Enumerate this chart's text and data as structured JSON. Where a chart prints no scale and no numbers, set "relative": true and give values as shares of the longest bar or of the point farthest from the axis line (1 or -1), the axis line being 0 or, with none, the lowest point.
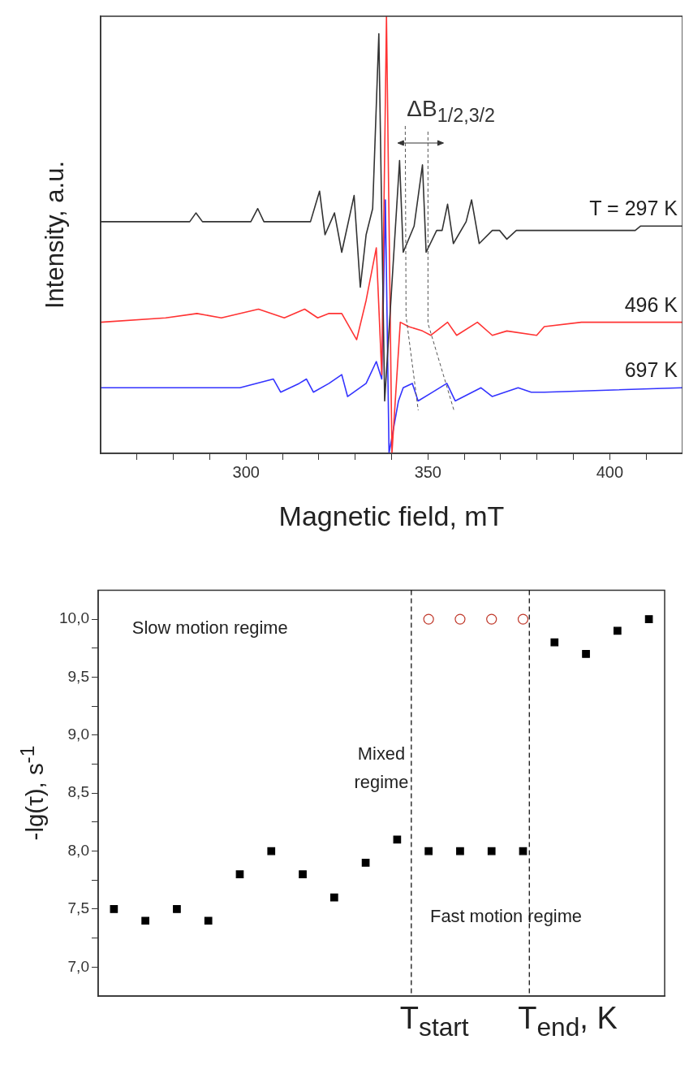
{
  "chart_data": [
    {
      "type": "line",
      "xlabel": "Magnetic field, mT",
      "ylabel": "Intensity, a.u.",
      "relative": true,
      "xlim": [
        260,
        420
      ],
      "xticks": [
        {
          "value": 270,
          "label": null
        },
        {
          "value": 280,
          "label": null
        },
        {
          "value": 290,
          "label": null
        },
        300,
        {
          "value": 310,
          "label": null
        },
        {
          "value": 320,
          "label": null
        },
        {
          "value": 330,
          "label": null
        },
        {
          "value": 340,
          "label": null
        },
        350,
        {
          "value": 360,
          "label": null
        },
        {
          "value": 370,
          "label": null
        },
        {
          "value": 380,
          "label": null
        },
        {
          "value": 390,
          "label": null
        },
        400,
        {
          "value": 410,
          "label": null
        }
      ],
      "annotations": [
        "ΔB$_{1/2,3/2}$"
      ],
      "grid": false,
      "legend": false,
      "series": [
        {
          "name": "T = 297 K",
          "color": "#333333",
          "x": [
            260,
            284.5,
            286.2,
            288,
            301.3,
            303.2,
            304.9,
            317.7,
            320.2,
            321.7,
            324.3,
            326.3,
            329.7,
            331.4,
            333,
            334.8,
            336.5,
            338.1,
            342.2,
            343.2,
            346.2,
            348.5,
            349.5,
            352.4,
            353.9,
            355.4,
            357,
            360.5,
            362,
            364.1,
            367.7,
            369.7,
            371.7,
            374.3,
            388,
            389.6,
            391.1,
            405.4,
            407,
            408.5,
            420
          ],
          "values": [
            0.53,
            0.53,
            0.55,
            0.53,
            0.53,
            0.56,
            0.53,
            0.53,
            0.6,
            0.5,
            0.55,
            0.46,
            0.59,
            0.38,
            0.5,
            0.56,
            0.96,
            0.12,
            0.67,
            0.46,
            0.52,
            0.66,
            0.46,
            0.51,
            0.51,
            0.57,
            0.48,
            0.53,
            0.58,
            0.48,
            0.51,
            0.51,
            0.49,
            0.51,
            0.51,
            0.51,
            0.51,
            0.51,
            0.51,
            0.52,
            0.52
          ]
        },
        {
          "name": "496 K",
          "color": "#ff3333",
          "x": [
            260,
            277.9,
            286.5,
            293.2,
            303.4,
            310.5,
            316.1,
            319.7,
            322.8,
            326.3,
            330.4,
            333,
            335.8,
            337.3,
            338.6,
            340.1,
            342.4,
            344.7,
            348.5,
            350.8,
            355.4,
            357.9,
            363.6,
            367.7,
            371.7,
            379.9,
            382,
            392.2,
            402.4,
            420
          ],
          "values": [
            0.3,
            0.31,
            0.32,
            0.31,
            0.33,
            0.31,
            0.33,
            0.31,
            0.32,
            0.32,
            0.26,
            0.35,
            0.47,
            0.18,
            1.0,
            0,
            0.3,
            0.29,
            0.28,
            0.27,
            0.3,
            0.27,
            0.3,
            0.27,
            0.28,
            0.27,
            0.29,
            0.3,
            0.3,
            0.3
          ]
        },
        {
          "name": "697 K",
          "color": "#3333ff",
          "x": [
            260,
            298.3,
            307.5,
            309.5,
            314.6,
            316.6,
            318.5,
            322.8,
            326.3,
            327.9,
            333,
            335.8,
            337.3,
            338.3,
            339.3,
            341.9,
            343.2,
            345.7,
            347.3,
            351.3,
            355.2,
            357.5,
            364.6,
            367.7,
            374.8,
            378.4,
            382,
            420
          ],
          "values": [
            0.15,
            0.15,
            0.17,
            0.14,
            0.16,
            0.17,
            0.14,
            0.16,
            0.18,
            0.13,
            0.16,
            0.21,
            0.17,
            0.58,
            0,
            0.12,
            0.15,
            0.16,
            0.12,
            0.14,
            0.16,
            0.12,
            0.15,
            0.13,
            0.15,
            0.14,
            0.14,
            0.15
          ]
        }
      ]
    },
    {
      "type": "scatter",
      "ylabel": "-lg(τ), s$^{-1}$",
      "categories": [
        null,
        null,
        null,
        null,
        null,
        null,
        null,
        null,
        null,
        null,
        null,
        null,
        null,
        null,
        null,
        null,
        null,
        null
      ],
      "ylim": [
        6.75,
        10.25
      ],
      "yticks": [
        {
          "value": 7,
          "label": "7,0"
        },
        {
          "value": 7.25,
          "label": null
        },
        {
          "value": 7.5,
          "label": "7,5"
        },
        {
          "value": 7.75,
          "label": null
        },
        {
          "value": 8,
          "label": "8,0"
        },
        {
          "value": 8.25,
          "label": null
        },
        {
          "value": 8.5,
          "label": "8,5"
        },
        {
          "value": 8.75,
          "label": null
        },
        {
          "value": 9,
          "label": "9,0"
        },
        {
          "value": 9.25,
          "label": null
        },
        {
          "value": 9.5,
          "label": "9,5"
        },
        {
          "value": 9.75,
          "label": null
        },
        {
          "value": 10,
          "label": "10,0"
        }
      ],
      "tick_labels": "y",
      "grid": false,
      "legend": false,
      "annotations": [
        "Slow motion regime",
        "Mixed regime",
        "Fast motion regime",
        "T$_{start}$",
        "T$_{end}$, K"
      ],
      "series": [
        {
          "color": "#000000",
          "marker": "square",
          "values": [
            7.5,
            7.4,
            7.5,
            7.4,
            7.8,
            8.0,
            7.8,
            7.6,
            7.9,
            8.1,
            8.0,
            8.0,
            8.0,
            8.0,
            9.8,
            9.7,
            9.9,
            10.0
          ]
        },
        {
          "color": "#c0392b",
          "marker": "circle",
          "values": [
            null,
            null,
            null,
            null,
            null,
            null,
            null,
            null,
            null,
            null,
            10.0,
            10.0,
            10.0,
            10.0,
            null,
            null,
            null,
            null
          ]
        }
      ]
    }
  ]
}
